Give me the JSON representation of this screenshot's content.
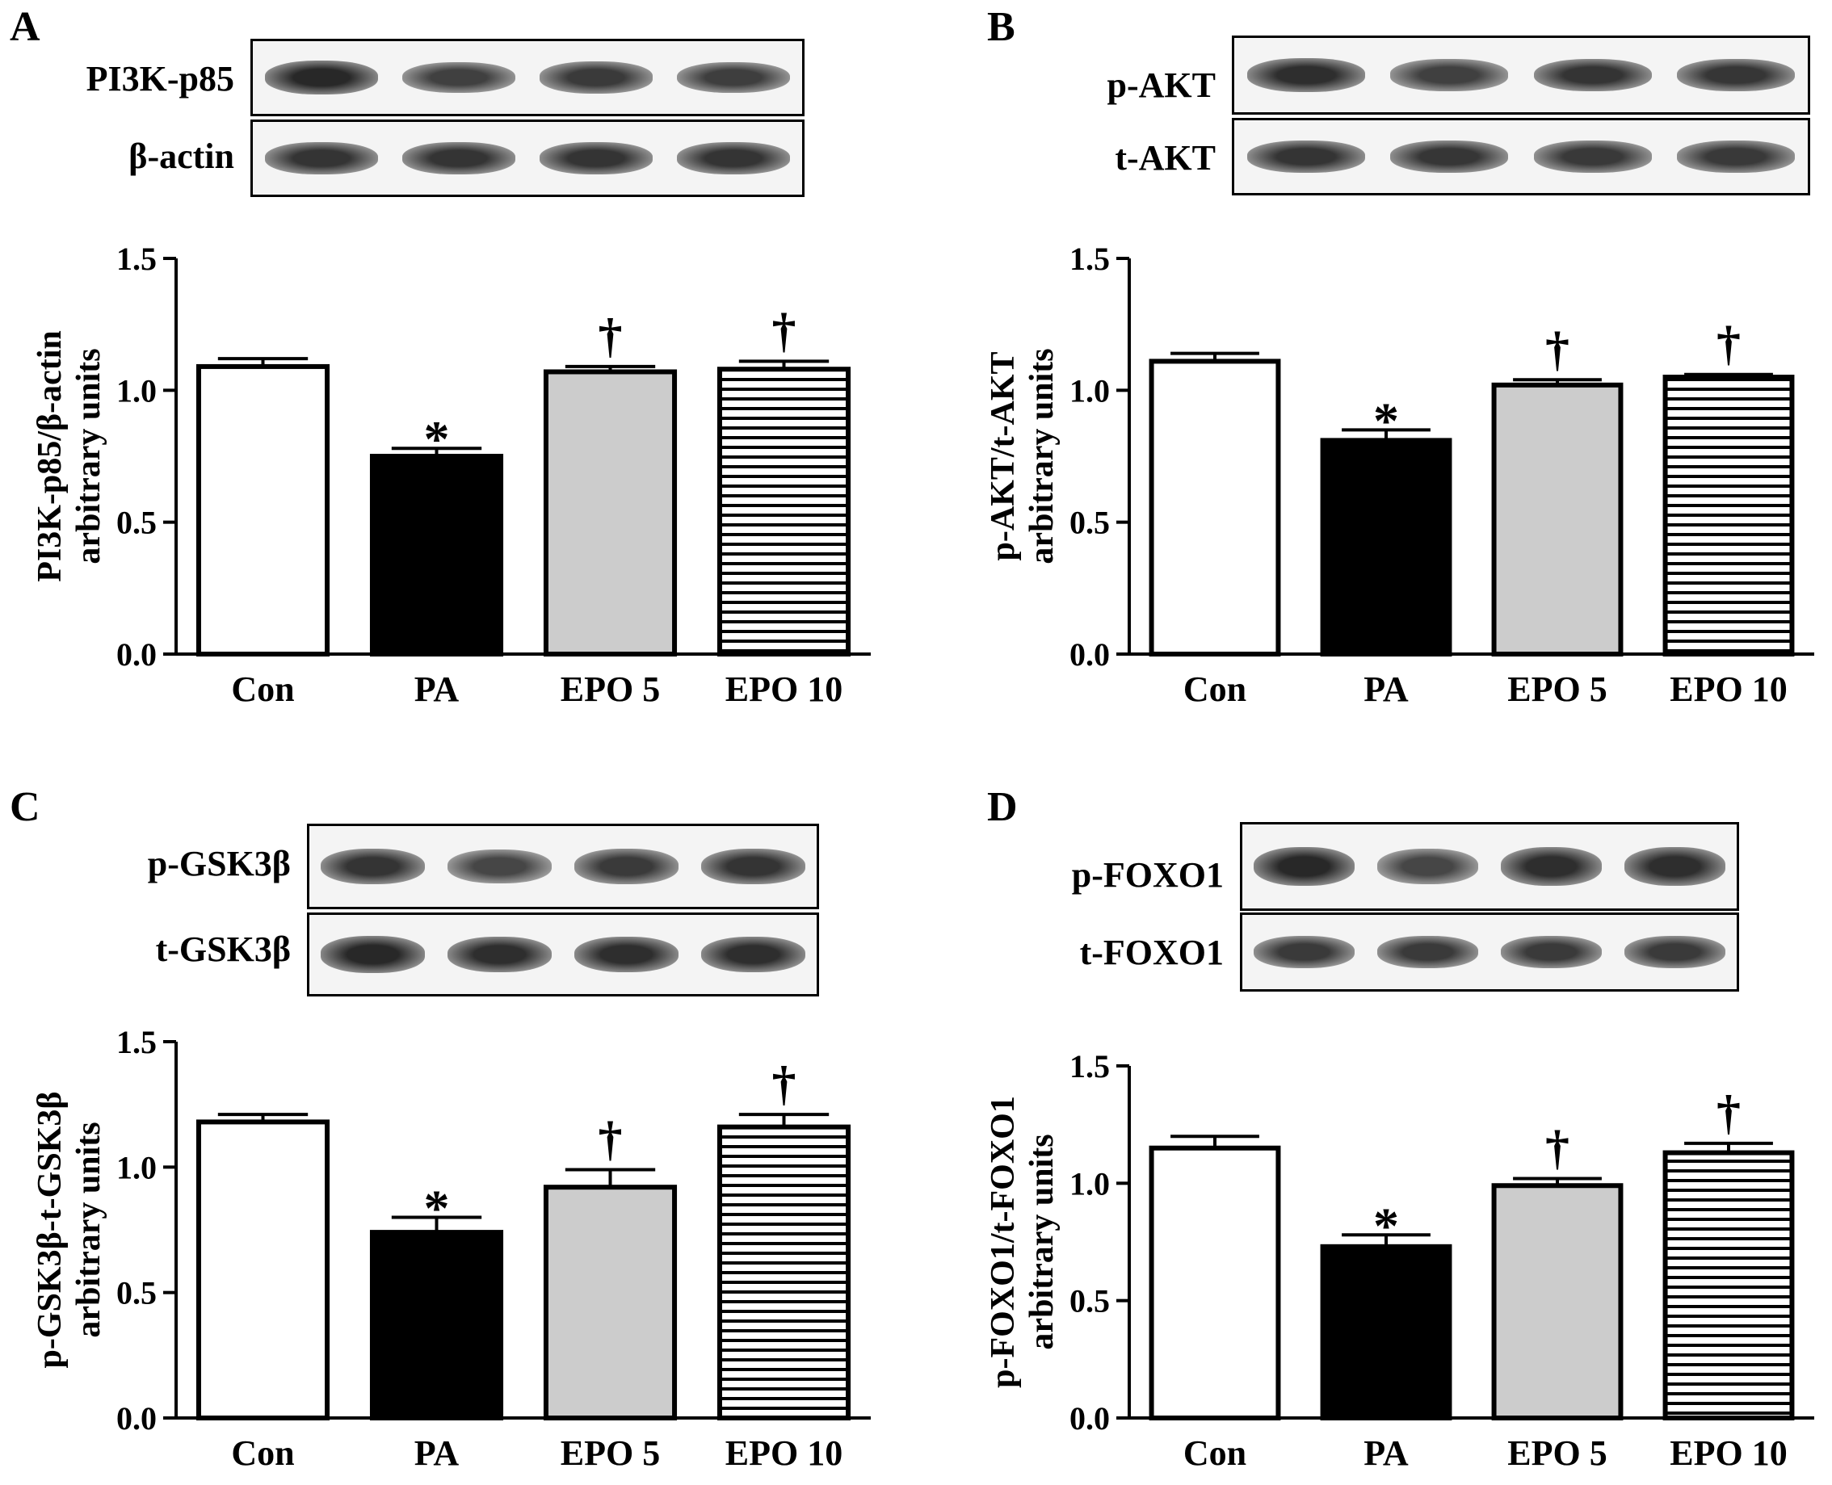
{
  "panels": [
    {
      "letter": "A",
      "blots": [
        {
          "label": "PI3K-p85",
          "intensities": [
            1.0,
            0.8,
            0.85,
            0.82
          ]
        },
        {
          "label": "β-actin",
          "intensities": [
            0.9,
            0.9,
            0.9,
            0.9
          ]
        }
      ]
    },
    {
      "letter": "B",
      "blots": [
        {
          "label": "p-AKT",
          "intensities": [
            0.95,
            0.8,
            0.9,
            0.88
          ]
        },
        {
          "label": "t-AKT",
          "intensities": [
            0.9,
            0.88,
            0.86,
            0.86
          ]
        }
      ]
    },
    {
      "letter": "C",
      "blots": [
        {
          "label": "p-GSK3β",
          "intensities": [
            0.9,
            0.75,
            0.85,
            0.9
          ]
        },
        {
          "label": "t-GSK3β",
          "intensities": [
            1.0,
            0.95,
            0.95,
            0.95
          ]
        }
      ]
    },
    {
      "letter": "D",
      "blots": [
        {
          "label": "p-FOXO1",
          "intensities": [
            1.0,
            0.75,
            0.95,
            0.95
          ]
        },
        {
          "label": "t-FOXO1",
          "intensities": [
            0.85,
            0.85,
            0.85,
            0.85
          ]
        }
      ]
    }
  ],
  "colors": {
    "Con": "#ffffff",
    "PA": "#000000",
    "EPO 5": "#cccccc",
    "EPO 10": "striped"
  },
  "chart_data": [
    {
      "type": "bar",
      "categories": [
        "Con",
        "PA",
        "EPO 5",
        "EPO 10"
      ],
      "values": [
        1.09,
        0.75,
        1.07,
        1.08
      ],
      "errors": [
        0.03,
        0.03,
        0.02,
        0.03
      ],
      "annotations": [
        "",
        "*",
        "†",
        "†"
      ],
      "ylabel": [
        "PI3K-p85/β-actin",
        "arbitrary units"
      ],
      "ylim": [
        0,
        1.5
      ],
      "yticks": [
        "0.0",
        "0.5",
        "1.0",
        "1.5"
      ]
    },
    {
      "type": "bar",
      "categories": [
        "Con",
        "PA",
        "EPO 5",
        "EPO 10"
      ],
      "values": [
        1.11,
        0.81,
        1.02,
        1.05
      ],
      "errors": [
        0.03,
        0.04,
        0.02,
        0.01
      ],
      "annotations": [
        "",
        "*",
        "†",
        "†"
      ],
      "ylabel": [
        "p-AKT/t-AKT",
        "arbitrary units"
      ],
      "ylim": [
        0,
        1.5
      ],
      "yticks": [
        "0.0",
        "0.5",
        "1.0",
        "1.5"
      ]
    },
    {
      "type": "bar",
      "categories": [
        "Con",
        "PA",
        "EPO 5",
        "EPO 10"
      ],
      "values": [
        1.18,
        0.74,
        0.92,
        1.16
      ],
      "errors": [
        0.03,
        0.06,
        0.07,
        0.05
      ],
      "annotations": [
        "",
        "*",
        "†",
        "†"
      ],
      "ylabel": [
        "p-GSK3β-t-GSK3β",
        "arbitrary units"
      ],
      "ylim": [
        0,
        1.5
      ],
      "yticks": [
        "0.0",
        "0.5",
        "1.0",
        "1.5"
      ]
    },
    {
      "type": "bar",
      "categories": [
        "Con",
        "PA",
        "EPO 5",
        "EPO 10"
      ],
      "values": [
        1.15,
        0.73,
        0.99,
        1.13
      ],
      "errors": [
        0.05,
        0.05,
        0.03,
        0.04
      ],
      "annotations": [
        "",
        "*",
        "†",
        "†"
      ],
      "ylabel": [
        "p-FOXO1/t-FOXO1",
        "arbitrary units"
      ],
      "ylim": [
        0,
        1.5
      ],
      "yticks": [
        "0.0",
        "0.5",
        "1.0",
        "1.5"
      ]
    }
  ]
}
